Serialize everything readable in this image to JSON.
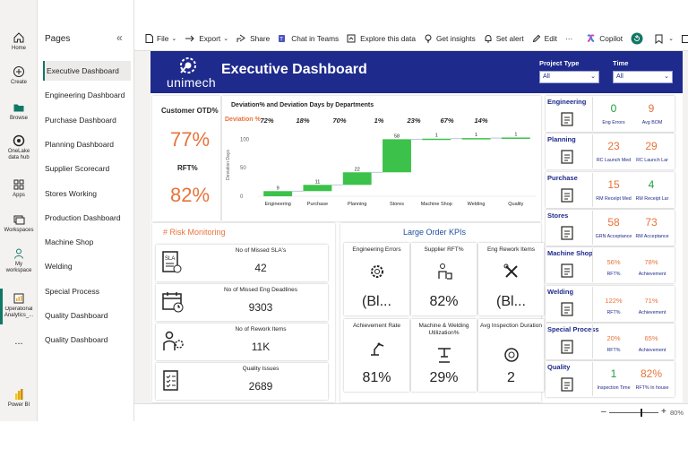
{
  "app_rail": {
    "items": [
      {
        "label": "Home",
        "icon": "home-icon"
      },
      {
        "label": "Create",
        "icon": "plus-circle-icon"
      },
      {
        "label": "Browse",
        "icon": "folder-icon"
      },
      {
        "label": "OneLake data hub",
        "icon": "onelake-icon"
      },
      {
        "label": "Apps",
        "icon": "apps-grid-icon"
      },
      {
        "label": "Workspaces",
        "icon": "workspaces-icon"
      },
      {
        "label": "My workspace",
        "icon": "person-icon"
      },
      {
        "label": "Operational Analytics_...",
        "icon": "report-icon"
      }
    ],
    "more": "...",
    "brand": "Power BI"
  },
  "pages_pane": {
    "title": "Pages",
    "collapse_glyph": "«",
    "items": [
      "Executive Dashboard",
      "Engineering Dashboard",
      "Purchase Dashboard",
      "Planning Dashboard",
      "Supplier Scorecard",
      "Stores Working",
      "Production Dashboard",
      "Machine Shop",
      "Welding",
      "Special Process",
      "Quality Dashboard",
      "Quality Dashboard"
    ],
    "active_index": 0
  },
  "toolbar": {
    "file": "File",
    "export": "Export",
    "share": "Share",
    "chat_in_teams": "Chat in Teams",
    "explore": "Explore this data",
    "insights": "Get insights",
    "alert": "Set alert",
    "edit": "Edit",
    "more": "···",
    "copilot": "Copilot"
  },
  "report": {
    "logo_text": "unimech",
    "title": "Executive Dashboard",
    "slicers": [
      {
        "label": "Project Type",
        "value": "All"
      },
      {
        "label": "Time",
        "value": "All"
      }
    ],
    "otd": {
      "title": "Customer OTD%",
      "otd_value": "77%",
      "rft_label": "RFT%",
      "rft_value": "82%"
    },
    "deviation_chart": {
      "title": "Deviation% and Deviation Days by Departments",
      "row_label": "Deviation %"
    },
    "risk": {
      "title": "# Risk Monitoring",
      "cards": [
        {
          "label": "No of Missed SLA's",
          "value": "42",
          "icon": "sla-document-icon"
        },
        {
          "label": "No of Missed Eng Deadlines",
          "value": "9303",
          "icon": "calendar-deadline-icon"
        },
        {
          "label": "No of Rework Items",
          "value": "11K",
          "icon": "rework-worker-icon"
        },
        {
          "label": "Quality Issues",
          "value": "2689",
          "icon": "quality-checklist-icon"
        }
      ]
    },
    "large_order": {
      "title": "Large Order KPIs",
      "cards": [
        {
          "label": "Engineering Errors",
          "value": "(Bl...",
          "icon": "gear-cog-icon"
        },
        {
          "label": "Supplier RFT%",
          "value": "82%",
          "icon": "supplier-icon"
        },
        {
          "label": "Eng Rework Items",
          "value": "(Bl...",
          "icon": "wrench-tools-icon"
        },
        {
          "label": "Achievement Rate",
          "value": "81%",
          "icon": "robot-arm-icon"
        },
        {
          "label": "Machine & Welding Utilization%",
          "value": "29%",
          "icon": "machine-press-icon"
        },
        {
          "label": "Avg Inspection Duration",
          "value": "2",
          "icon": "timer-dial-icon"
        }
      ]
    },
    "departments": [
      {
        "name": "Engineering",
        "icon": "engineering-icon",
        "v1": "0",
        "l1": "Eng Errors",
        "c1": "#1e9e3c",
        "v2": "9",
        "l2": "Avg BOM",
        "c2": "#e8733a"
      },
      {
        "name": "Planning",
        "icon": "planning-icon",
        "v1": "23",
        "l1": "RC Launch Med",
        "c1": "#e8733a",
        "v2": "29",
        "l2": "RC Launch Lar",
        "c2": "#e8733a"
      },
      {
        "name": "Purchase",
        "icon": "purchase-icon",
        "v1": "15",
        "l1": "RM Receipt Med",
        "c1": "#e8733a",
        "v2": "4",
        "l2": "RM Receipt Lar",
        "c2": "#1e9e3c"
      },
      {
        "name": "Stores",
        "icon": "stores-icon",
        "v1": "58",
        "l1": "GRN Acceptance",
        "c1": "#e8733a",
        "v2": "73",
        "l2": "RM Acceptance",
        "c2": "#e8733a"
      },
      {
        "name": "Machine Shop",
        "icon": "machine-shop-icon",
        "v1": "56%",
        "l1": "RFT%",
        "c1": "#e8733a",
        "v2": "78%",
        "l2": "Achievement",
        "c2": "#e8733a"
      },
      {
        "name": "Welding",
        "icon": "welding-icon",
        "v1": "122%",
        "l1": "RFT%",
        "c1": "#e8733a",
        "v2": "71%",
        "l2": "Achievement",
        "c2": "#e8733a"
      },
      {
        "name": "Special Process",
        "icon": "special-process-icon",
        "v1": "20%",
        "l1": "RFT%",
        "c1": "#e8733a",
        "v2": "65%",
        "l2": "Achievement",
        "c2": "#e8733a"
      },
      {
        "name": "Quality",
        "icon": "quality-icon",
        "v1": "1",
        "l1": "Inspection Time",
        "c1": "#1e9e3c",
        "v2": "82%",
        "l2": "RFT% In house",
        "c2": "#e8733a"
      }
    ]
  },
  "status_bar": {
    "zoom_minus": "–",
    "zoom_plus": "+",
    "zoom": "80%",
    "zoom_level": 0.8
  },
  "chart_data": {
    "type": "bar",
    "title": "Deviation% and Deviation Days by Departments",
    "xlabel": "",
    "ylabel": "Deviation Days",
    "categories": [
      "Engineering",
      "Purchase",
      "Planning",
      "Stores",
      "Machine Shop",
      "Welding",
      "Quality"
    ],
    "series": [
      {
        "name": "Deviation %",
        "values": [
          "72%",
          "18%",
          "70%",
          "1%",
          "23%",
          "67%",
          "14%"
        ]
      }
    ],
    "waterfall_values": [
      9,
      11,
      22,
      58,
      1,
      1,
      1
    ],
    "ylim": [
      0,
      110
    ],
    "y_ticks": [
      "100",
      "50",
      "0"
    ],
    "bar_color": "#3cc24a",
    "line_color": "#a9b8d4"
  }
}
